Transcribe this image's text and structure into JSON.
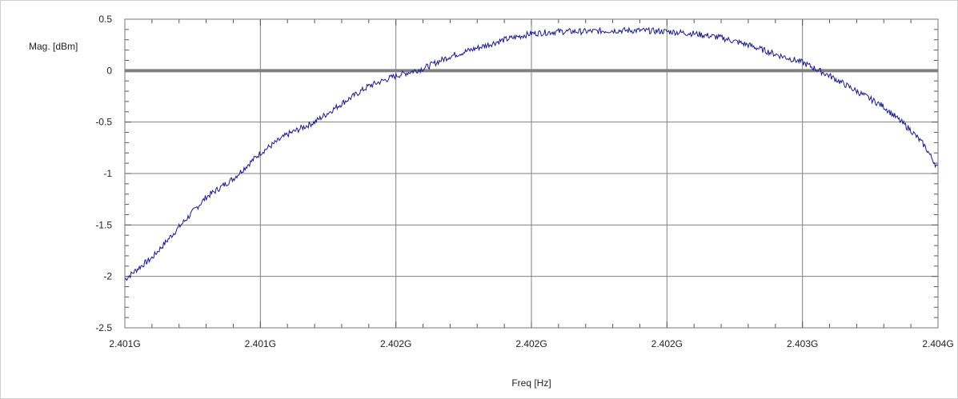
{
  "chart_data": {
    "type": "line",
    "title": "",
    "xlabel": "Freq [Hz]",
    "ylabel": "Mag. [dBm]",
    "xlim": [
      2401000000,
      2404000000
    ],
    "ylim": [
      -2.5,
      0.5
    ],
    "x_tick_labels": [
      "2.401G",
      "2.401G",
      "2.402G",
      "2.402G",
      "2.402G",
      "2.403G",
      "2.404G"
    ],
    "y_tick_labels": [
      "0.5",
      "0",
      "-0.5",
      "-1",
      "-1.5",
      "-2",
      "-2.5"
    ],
    "reference_line": {
      "y": 0,
      "color": "#808080"
    },
    "grid": true,
    "legend": "none",
    "colors": {
      "trace": "#1a1a8c",
      "grid": "#808080",
      "frame": "#cfcfcf"
    },
    "series": [
      {
        "x": [
          2401000000,
          2401050000,
          2401100000,
          2401200000,
          2401300000,
          2401400000,
          2401500000,
          2401600000,
          2401700000,
          2401800000,
          2401900000,
          2402000000,
          2402100000,
          2402200000,
          2402300000,
          2402400000,
          2402500000,
          2402600000,
          2402700000,
          2402800000,
          2402900000,
          2403000000,
          2403100000,
          2403200000,
          2403300000,
          2403400000,
          2403500000,
          2403600000,
          2403700000,
          2403800000,
          2403900000,
          2403950000,
          2404000000
        ],
        "values": [
          -2.03,
          -1.92,
          -1.82,
          -1.52,
          -1.23,
          -1.05,
          -0.8,
          -0.62,
          -0.5,
          -0.32,
          -0.15,
          -0.05,
          0.02,
          0.14,
          0.22,
          0.3,
          0.36,
          0.38,
          0.38,
          0.39,
          0.39,
          0.38,
          0.36,
          0.32,
          0.25,
          0.16,
          0.08,
          -0.05,
          -0.2,
          -0.35,
          -0.58,
          -0.73,
          -0.95
        ]
      }
    ]
  }
}
